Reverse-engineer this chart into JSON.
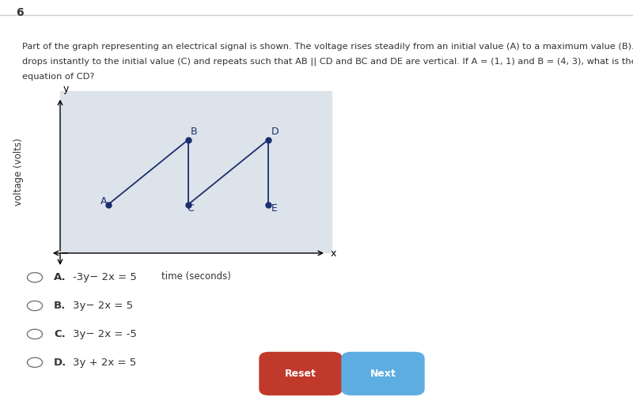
{
  "question_number": "6",
  "line1": "Part of the graph representing an electrical signal is shown. The voltage rises steadily from an initial value (A) to a maximum value (B). It then",
  "line2": "drops instantly to the initial value (C) and repeats such that AB || CD and BC and DE are vertical. If A = (1, 1) and B = (4, 3), what is the",
  "line3": "equation of CD?",
  "xlabel": "time (seconds)",
  "ylabel": "voltage (volts)",
  "graph_bg": "#dde3ea",
  "points": {
    "A": [
      1.5,
      1.2
    ],
    "B": [
      4.0,
      2.8
    ],
    "C": [
      4.0,
      1.2
    ],
    "D": [
      6.5,
      2.8
    ],
    "E": [
      6.5,
      1.2
    ]
  },
  "point_color": "#1a2e6e",
  "line_color": "#1a2e6e",
  "options": [
    {
      "label": "A.",
      "text": "-3y− 2x = 5"
    },
    {
      "label": "B.",
      "text": "3y− 2x = 5"
    },
    {
      "label": "C.",
      "text": "3y− 2x = -5"
    },
    {
      "label": "D.",
      "text": "3y + 2x = 5"
    }
  ],
  "reset_btn_color": "#c0392b",
  "next_btn_color": "#5dade2",
  "page_bg": "#ffffff",
  "font_color": "#333333",
  "border_color": "#cccccc"
}
